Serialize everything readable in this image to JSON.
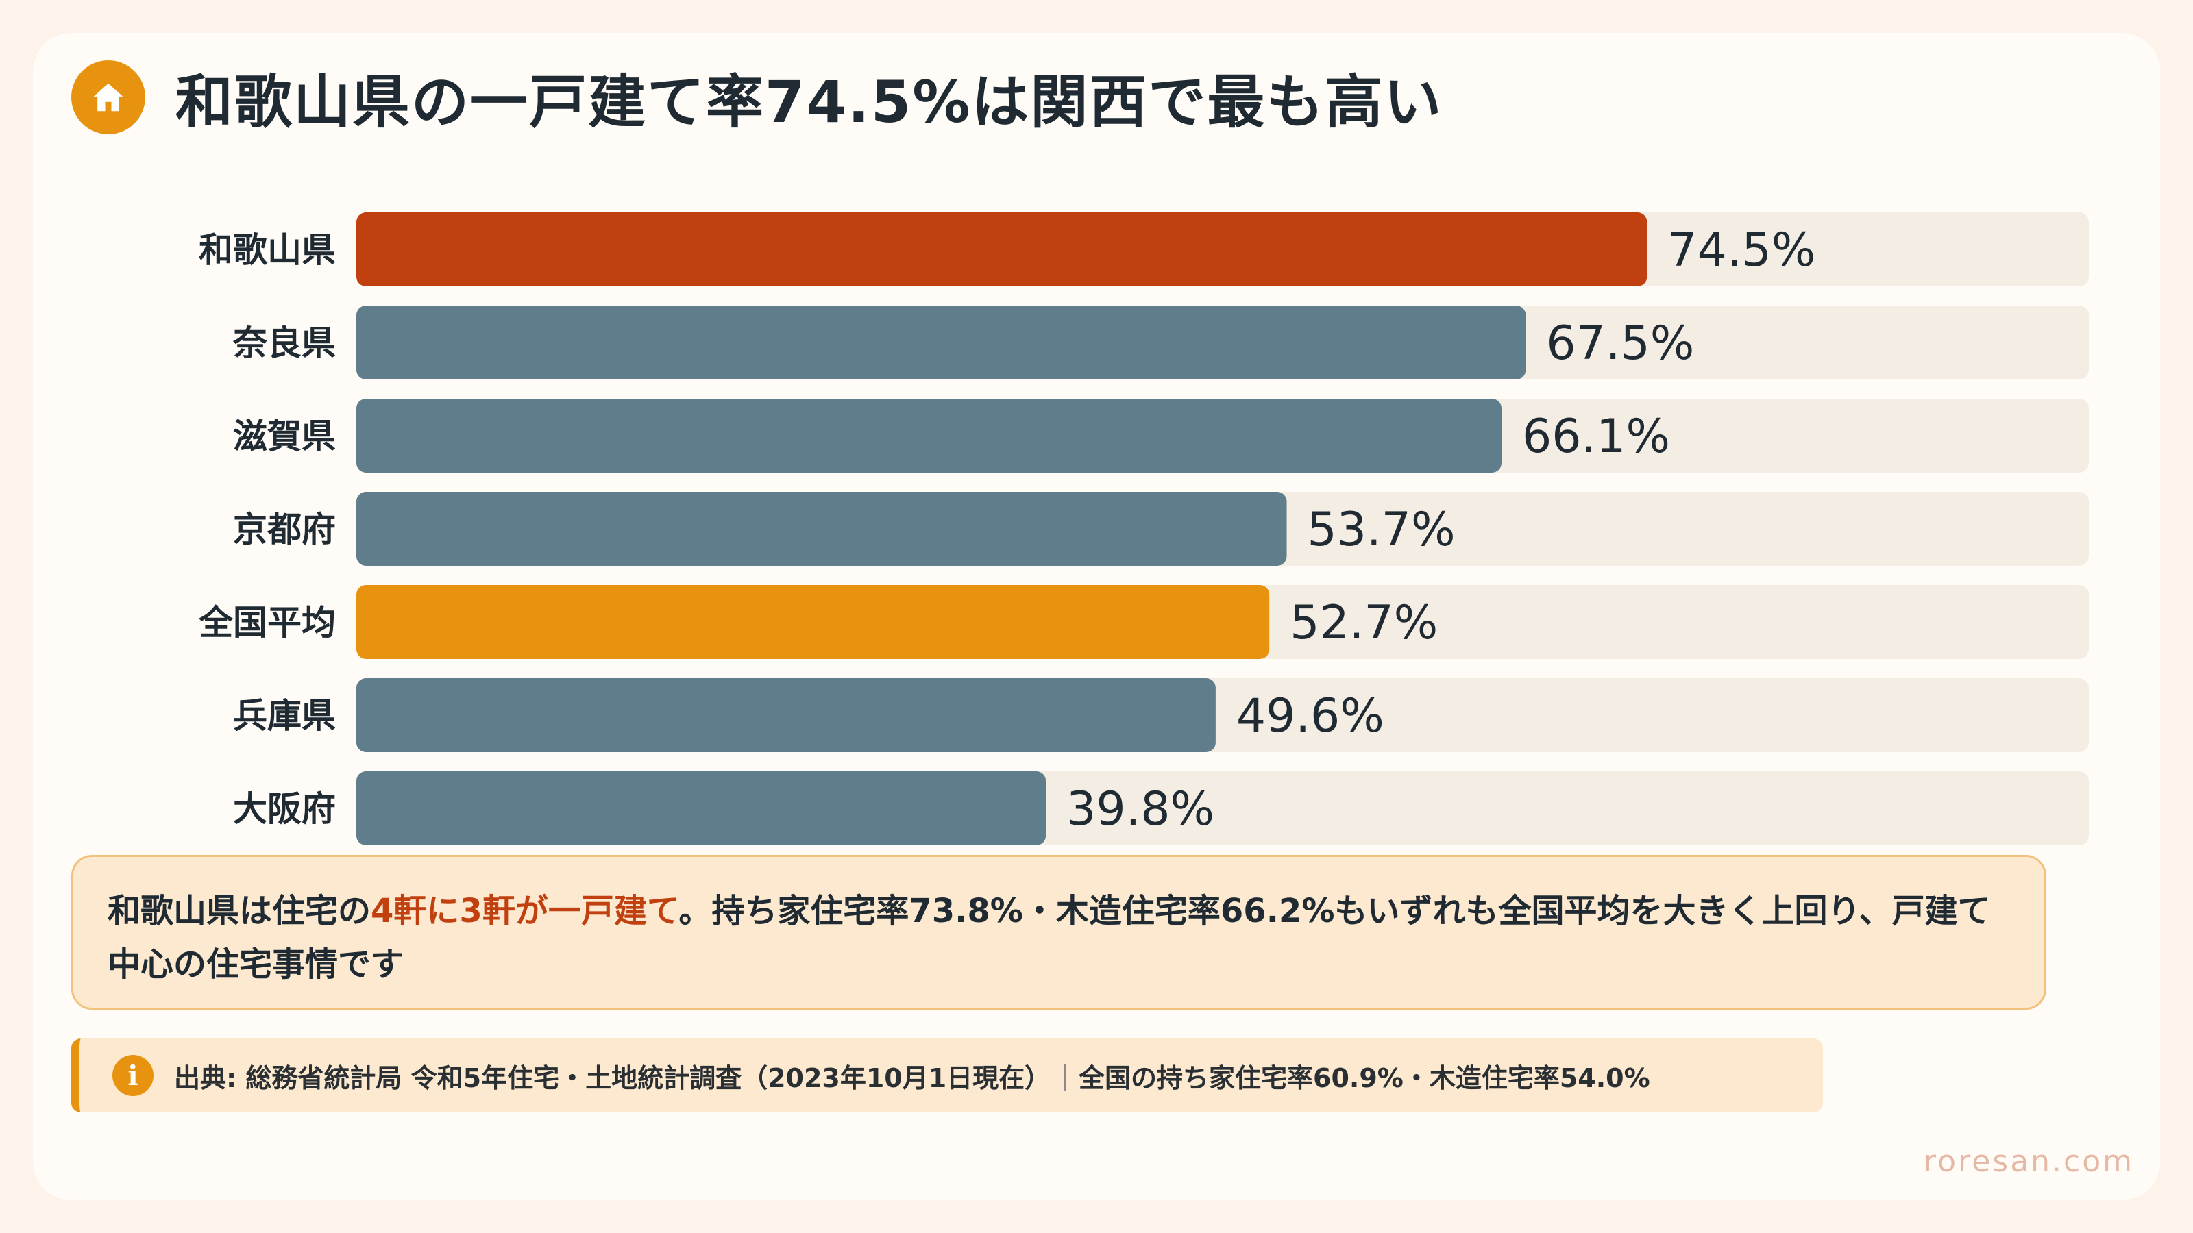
{
  "title": "和歌山県の一戸建て率74.5%は関西で最も高い",
  "icons": {
    "header": "home-icon",
    "source": "info-icon"
  },
  "colors": {
    "highlight": "#c0400f",
    "average": "#e8930f",
    "other": "#607d8b",
    "track": "#f4ede4"
  },
  "chart_data": {
    "type": "bar",
    "orientation": "horizontal",
    "categories": [
      "和歌山県",
      "奈良県",
      "滋賀県",
      "京都府",
      "全国平均",
      "兵庫県",
      "大阪府"
    ],
    "values": [
      74.5,
      67.5,
      66.1,
      53.7,
      52.7,
      49.6,
      39.8
    ],
    "value_labels": [
      "74.5%",
      "67.5%",
      "66.1%",
      "53.7%",
      "52.7%",
      "49.6%",
      "39.8%"
    ],
    "bar_colors": [
      "#c0400f",
      "#607d8b",
      "#607d8b",
      "#607d8b",
      "#e8930f",
      "#607d8b",
      "#607d8b"
    ],
    "xlim": [
      0,
      100
    ],
    "grid": false,
    "legend": "none"
  },
  "callout": {
    "before": "和歌山県は住宅の",
    "highlight": "4軒に3軒が一戸建て",
    "after": "。持ち家住宅率73.8%・木造住宅率66.2%もいずれも全国平均を大きく上回り、戸建て中心の住宅事情です"
  },
  "source": {
    "icon_glyph": "i",
    "text": "出典: 総務省統計局 令和5年住宅・土地統計調査（2023年10月1日現在）",
    "separator": "|",
    "note": "全国の持ち家住宅率60.9%・木造住宅率54.0%"
  },
  "brand": "roresan.com"
}
